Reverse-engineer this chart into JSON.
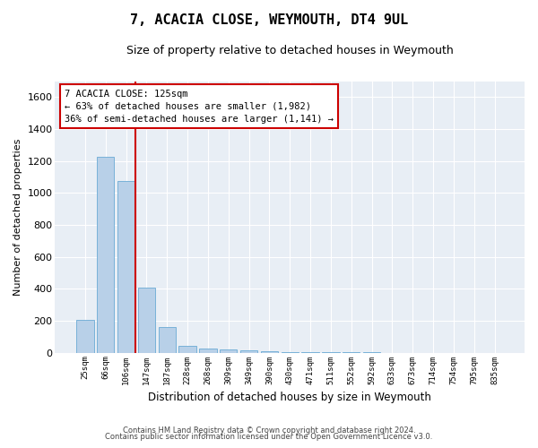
{
  "title": "7, ACACIA CLOSE, WEYMOUTH, DT4 9UL",
  "subtitle": "Size of property relative to detached houses in Weymouth",
  "xlabel": "Distribution of detached houses by size in Weymouth",
  "ylabel": "Number of detached properties",
  "bar_color": "#b8d0e8",
  "bar_edge_color": "#6aaad4",
  "background_color": "#e8eef5",
  "grid_color": "white",
  "categories": [
    "25sqm",
    "66sqm",
    "106sqm",
    "147sqm",
    "187sqm",
    "228sqm",
    "268sqm",
    "309sqm",
    "349sqm",
    "390sqm",
    "430sqm",
    "471sqm",
    "511sqm",
    "552sqm",
    "592sqm",
    "633sqm",
    "673sqm",
    "714sqm",
    "754sqm",
    "795sqm",
    "835sqm"
  ],
  "values": [
    203,
    1225,
    1075,
    410,
    162,
    45,
    27,
    18,
    14,
    8,
    5,
    3,
    2,
    1,
    1,
    0,
    0,
    0,
    0,
    0,
    0
  ],
  "ylim": [
    0,
    1700
  ],
  "yticks": [
    0,
    200,
    400,
    600,
    800,
    1000,
    1200,
    1400,
    1600
  ],
  "property_line_x": 2.475,
  "annotation_box_text": "7 ACACIA CLOSE: 125sqm\n← 63% of detached houses are smaller (1,982)\n36% of semi-detached houses are larger (1,141) →",
  "annotation_box_color": "#cc0000",
  "footnote_line1": "Contains HM Land Registry data © Crown copyright and database right 2024.",
  "footnote_line2": "Contains public sector information licensed under the Open Government Licence v3.0.",
  "title_fontsize": 11,
  "subtitle_fontsize": 9,
  "ylabel_fontsize": 8,
  "xlabel_fontsize": 8.5,
  "ytick_fontsize": 8,
  "xtick_fontsize": 6.5,
  "annot_fontsize": 7.5
}
